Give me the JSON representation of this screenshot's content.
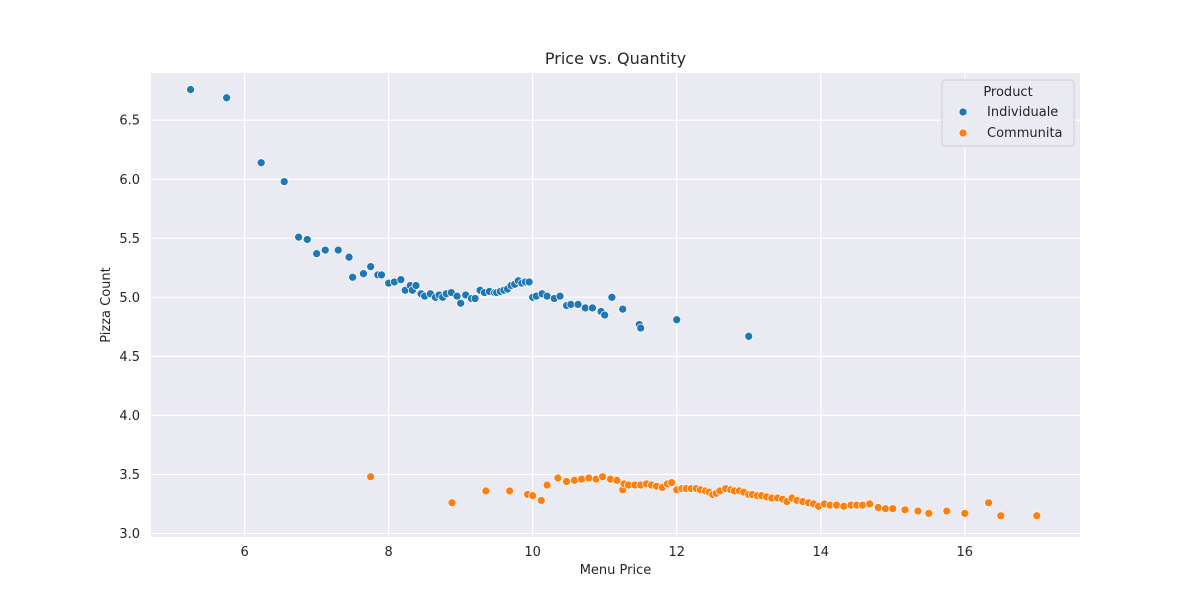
{
  "chart_data": {
    "type": "scatter",
    "title": "Price vs. Quantity",
    "xlabel": "Menu Price",
    "ylabel": "Pizza Count",
    "xlim": [
      4.7,
      17.6
    ],
    "ylim": [
      2.97,
      6.9
    ],
    "xticks": [
      6,
      8,
      10,
      12,
      14,
      16
    ],
    "xtick_labels": [
      "6",
      "8",
      "10",
      "12",
      "14",
      "16"
    ],
    "yticks": [
      3.0,
      3.5,
      4.0,
      4.5,
      5.0,
      5.5,
      6.0,
      6.5
    ],
    "ytick_labels": [
      "3.0",
      "3.5",
      "4.0",
      "4.5",
      "5.0",
      "5.5",
      "6.0",
      "6.5"
    ],
    "grid": true,
    "legend": {
      "title": "Product",
      "placement": "top-right",
      "entries": [
        "Individuale",
        "Communita"
      ]
    },
    "colors": {
      "Individuale": "#1f77b4",
      "Communita": "#ff7f0e",
      "background": "#eaeaf2",
      "grid": "#ffffff"
    },
    "series": [
      {
        "name": "Individuale",
        "x": [
          5.25,
          5.75,
          6.23,
          6.55,
          6.75,
          6.87,
          7.0,
          7.12,
          7.3,
          7.45,
          7.5,
          7.65,
          7.75,
          7.85,
          7.9,
          8.0,
          8.08,
          8.17,
          8.23,
          8.3,
          8.33,
          8.38,
          8.45,
          8.5,
          8.58,
          8.65,
          8.7,
          8.75,
          8.8,
          8.87,
          8.95,
          9.0,
          9.07,
          9.15,
          9.2,
          9.27,
          9.33,
          9.4,
          9.47,
          9.5,
          9.55,
          9.6,
          9.65,
          9.7,
          9.75,
          9.8,
          9.85,
          9.9,
          9.95,
          10.0,
          10.05,
          10.13,
          10.2,
          10.3,
          10.38,
          10.47,
          10.53,
          10.63,
          10.73,
          10.83,
          10.95,
          11.0,
          11.1,
          11.25,
          11.48,
          11.5,
          12.0,
          13.0
        ],
        "y": [
          6.76,
          6.69,
          6.14,
          5.98,
          5.51,
          5.49,
          5.37,
          5.4,
          5.4,
          5.34,
          5.17,
          5.2,
          5.26,
          5.19,
          5.19,
          5.12,
          5.13,
          5.15,
          5.06,
          5.1,
          5.06,
          5.1,
          5.03,
          5.01,
          5.03,
          5.0,
          5.02,
          5.0,
          5.03,
          5.04,
          5.01,
          4.95,
          5.02,
          4.99,
          4.99,
          5.06,
          5.04,
          5.05,
          5.04,
          5.04,
          5.05,
          5.06,
          5.07,
          5.1,
          5.11,
          5.14,
          5.12,
          5.13,
          5.13,
          5.0,
          5.01,
          5.03,
          5.01,
          4.99,
          5.01,
          4.93,
          4.94,
          4.94,
          4.91,
          4.91,
          4.88,
          4.85,
          5.0,
          4.9,
          4.77,
          4.74,
          4.81,
          4.67
        ]
      },
      {
        "name": "Communita",
        "x": [
          7.75,
          8.88,
          9.35,
          9.68,
          9.93,
          10.0,
          10.12,
          10.2,
          10.35,
          10.47,
          10.58,
          10.68,
          10.78,
          10.88,
          10.97,
          11.08,
          11.17,
          11.25,
          11.27,
          11.33,
          11.42,
          11.5,
          11.58,
          11.65,
          11.72,
          11.8,
          11.87,
          11.93,
          12.0,
          12.07,
          12.13,
          12.2,
          12.27,
          12.33,
          12.4,
          12.45,
          12.5,
          12.55,
          12.6,
          12.68,
          12.75,
          12.8,
          12.87,
          12.93,
          13.0,
          13.05,
          13.12,
          13.18,
          13.25,
          13.32,
          13.4,
          13.47,
          13.53,
          13.6,
          13.67,
          13.75,
          13.83,
          13.9,
          13.97,
          14.05,
          14.13,
          14.22,
          14.32,
          14.42,
          14.5,
          14.58,
          14.68,
          14.8,
          14.9,
          15.0,
          15.17,
          15.35,
          15.5,
          15.75,
          16.0,
          16.33,
          16.5,
          17.0
        ],
        "y": [
          3.48,
          3.26,
          3.36,
          3.36,
          3.33,
          3.32,
          3.28,
          3.41,
          3.47,
          3.44,
          3.45,
          3.46,
          3.47,
          3.46,
          3.48,
          3.46,
          3.45,
          3.37,
          3.42,
          3.41,
          3.41,
          3.41,
          3.42,
          3.41,
          3.4,
          3.39,
          3.42,
          3.43,
          3.37,
          3.38,
          3.38,
          3.38,
          3.38,
          3.37,
          3.36,
          3.35,
          3.33,
          3.34,
          3.36,
          3.38,
          3.37,
          3.36,
          3.36,
          3.35,
          3.33,
          3.33,
          3.32,
          3.32,
          3.31,
          3.3,
          3.3,
          3.29,
          3.27,
          3.3,
          3.28,
          3.27,
          3.26,
          3.25,
          3.23,
          3.25,
          3.24,
          3.24,
          3.23,
          3.24,
          3.24,
          3.24,
          3.25,
          3.22,
          3.21,
          3.21,
          3.2,
          3.19,
          3.17,
          3.19,
          3.17,
          3.26,
          3.15,
          3.15
        ]
      }
    ]
  }
}
